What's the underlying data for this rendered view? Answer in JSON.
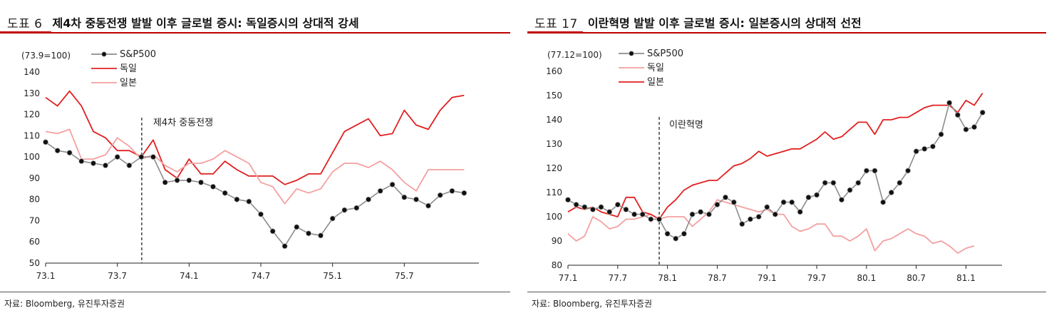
{
  "panels": [
    {
      "figure_no": "도표 6",
      "title": "제4차 중동전쟁 발발 이후 글로벌 증시: 독일증시의 상대적 강세",
      "source": "자료: Bloomberg, 유진투자증권"
    },
    {
      "figure_no": "도표 17",
      "title": "이란혁명 발발 이후 글로벌 증시: 일본증시의 상대적 선전",
      "source": "자료: Bloomberg, 유진투자증권"
    }
  ],
  "colors": {
    "sp500": "#8c8c8c",
    "germany": "#e02020",
    "japan": "#f4a0a0",
    "marker": "#111111",
    "accent": "#c00000"
  },
  "chart_data": [
    {
      "type": "line",
      "unit_label": "(73.9=100)",
      "ylim": [
        50,
        140
      ],
      "yticks": [
        50,
        60,
        70,
        80,
        90,
        100,
        110,
        120,
        130,
        140
      ],
      "xlim": [
        1973.0,
        1976.0
      ],
      "xticks": [
        1973.0,
        1973.5,
        1974.0,
        1974.5,
        1975.0,
        1975.5
      ],
      "xtick_labels": [
        "73.1",
        "73.7",
        "74.1",
        "74.7",
        "75.1",
        "75.7"
      ],
      "event": {
        "x": 1973.67,
        "label": "제4차 중동전쟁"
      },
      "legend": [
        "S&P500",
        "독일",
        "일본"
      ],
      "x": [
        1973.0,
        1973.083,
        1973.167,
        1973.25,
        1973.333,
        1973.417,
        1973.5,
        1973.583,
        1973.667,
        1973.75,
        1973.833,
        1973.917,
        1974.0,
        1974.083,
        1974.167,
        1974.25,
        1974.333,
        1974.417,
        1974.5,
        1974.583,
        1974.667,
        1974.75,
        1974.833,
        1974.917,
        1975.0,
        1975.083,
        1975.167,
        1975.25,
        1975.333,
        1975.417,
        1975.5,
        1975.583,
        1975.667,
        1975.75,
        1975.833,
        1975.917
      ],
      "series": [
        {
          "name": "S&P500",
          "color": "#8c8c8c",
          "markers": true,
          "values": [
            107,
            103,
            102,
            98,
            97,
            96,
            100,
            96,
            100,
            100,
            88,
            89,
            89,
            88,
            86,
            83,
            80,
            79,
            73,
            65,
            58,
            67,
            64,
            63,
            71,
            75,
            76,
            80,
            84,
            87,
            81,
            80,
            77,
            82,
            84,
            83
          ]
        },
        {
          "name": "독일",
          "color": "#e02020",
          "markers": false,
          "values": [
            128,
            124,
            131,
            124,
            112,
            109,
            103,
            103,
            100,
            108,
            94,
            90,
            99,
            92,
            92,
            98,
            94,
            91,
            91,
            91,
            87,
            89,
            92,
            92,
            102,
            112,
            115,
            118,
            110,
            111,
            122,
            115,
            113,
            122,
            128,
            129
          ]
        },
        {
          "name": "일본",
          "color": "#f4a0a0",
          "markers": false,
          "values": [
            112,
            111,
            113,
            99,
            99,
            101,
            109,
            105,
            99,
            101,
            96,
            93,
            97,
            97,
            99,
            103,
            100,
            97,
            88,
            86,
            78,
            85,
            83,
            85,
            93,
            97,
            97,
            95,
            98,
            94,
            88,
            84,
            94,
            94,
            94,
            94
          ]
        }
      ]
    },
    {
      "type": "line",
      "unit_label": "(77.12=100)",
      "ylim": [
        80,
        160
      ],
      "yticks": [
        80,
        90,
        100,
        110,
        120,
        130,
        140,
        150,
        160
      ],
      "xlim": [
        1977.0,
        1981.333
      ],
      "xticks": [
        1977.0,
        1977.5,
        1978.0,
        1978.5,
        1979.0,
        1979.5,
        1980.0,
        1980.5,
        1981.0
      ],
      "xtick_labels": [
        "77.1",
        "77.7",
        "78.1",
        "78.7",
        "79.1",
        "79.7",
        "80.1",
        "80.7",
        "81.1"
      ],
      "event": {
        "x": 1977.917,
        "label": "이란혁명"
      },
      "legend": [
        "S&P500",
        "독일",
        "일본"
      ],
      "x": [
        1977.0,
        1977.083,
        1977.167,
        1977.25,
        1977.333,
        1977.417,
        1977.5,
        1977.583,
        1977.667,
        1977.75,
        1977.833,
        1977.917,
        1978.0,
        1978.083,
        1978.167,
        1978.25,
        1978.333,
        1978.417,
        1978.5,
        1978.583,
        1978.667,
        1978.75,
        1978.833,
        1978.917,
        1979.0,
        1979.083,
        1979.167,
        1979.25,
        1979.333,
        1979.417,
        1979.5,
        1979.583,
        1979.667,
        1979.75,
        1979.833,
        1979.917,
        1980.0,
        1980.083,
        1980.167,
        1980.25,
        1980.333,
        1980.417,
        1980.5,
        1980.583,
        1980.667,
        1980.75,
        1980.833,
        1980.917,
        1981.0,
        1981.083,
        1981.167,
        1981.25
      ],
      "series": [
        {
          "name": "S&P500",
          "color": "#8c8c8c",
          "markers": true,
          "values": [
            107,
            105,
            104,
            103,
            104,
            102,
            105,
            103,
            101,
            101,
            99,
            99,
            93,
            91,
            93,
            101,
            102,
            101,
            105,
            108,
            106,
            97,
            99,
            100,
            104,
            101,
            106,
            106,
            102,
            108,
            109,
            114,
            114,
            107,
            111,
            114,
            119,
            119,
            106,
            110,
            114,
            119,
            127,
            128,
            129,
            134,
            147,
            142,
            136,
            137,
            143,
            null
          ]
        },
        {
          "name": "독일",
          "color": "#f4a0a0",
          "markers": false,
          "values": [
            93,
            90,
            92,
            100,
            98,
            95,
            96,
            99,
            99,
            100,
            101,
            99,
            100,
            100,
            100,
            96,
            99,
            102,
            107,
            106,
            105,
            104,
            103,
            102,
            103,
            101,
            101,
            96,
            94,
            95,
            97,
            97,
            92,
            92,
            90,
            92,
            95,
            86,
            90,
            91,
            93,
            95,
            93,
            92,
            89,
            90,
            88,
            85,
            87,
            88,
            null,
            null
          ]
        },
        {
          "name": "일본",
          "color": "#e02020",
          "markers": false,
          "values": [
            102,
            104,
            103,
            104,
            102,
            101,
            100,
            108,
            108,
            102,
            101,
            99,
            104,
            107,
            111,
            113,
            114,
            115,
            115,
            118,
            121,
            122,
            124,
            127,
            125,
            126,
            127,
            128,
            128,
            130,
            132,
            135,
            132,
            133,
            136,
            139,
            139,
            134,
            140,
            140,
            141,
            141,
            143,
            145,
            146,
            146,
            146,
            143,
            148,
            146,
            151,
            null
          ]
        }
      ]
    }
  ]
}
